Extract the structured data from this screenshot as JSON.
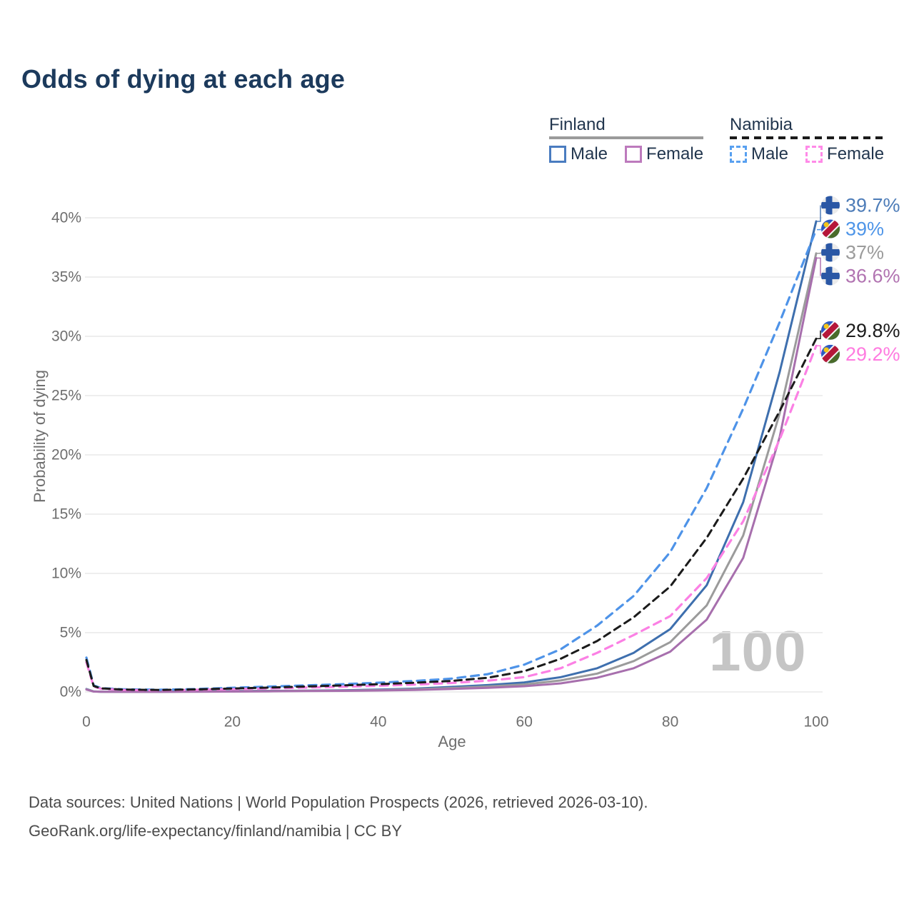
{
  "page": {
    "title": "Odds of dying at each age",
    "watermark": "100",
    "source_line1": "Data sources: United Nations | World Population Prospects (2026, retrieved 2026-03-10).",
    "source_line2": "GeoRank.org/life-expectancy/finland/namibia | CC BY"
  },
  "legend": {
    "groups": [
      {
        "title": "Finland",
        "style": "solid",
        "items": [
          {
            "label": "Male",
            "color": "#4a7cc0",
            "dash": false
          },
          {
            "label": "Female",
            "color": "#bd7abd",
            "dash": false
          }
        ]
      },
      {
        "title": "Namibia",
        "style": "dashed",
        "items": [
          {
            "label": "Male",
            "color": "#58a0f0",
            "dash": true
          },
          {
            "label": "Female",
            "color": "#ff8ae8",
            "dash": true
          }
        ]
      }
    ]
  },
  "chart_data": {
    "type": "line",
    "title": "Odds of dying at each age",
    "xlabel": "Age",
    "ylabel": "Probability of dying",
    "xlim": [
      0,
      100
    ],
    "ylim": [
      0,
      40
    ],
    "xticks": [
      0,
      20,
      40,
      60,
      80,
      100
    ],
    "yticks": [
      0,
      5,
      10,
      15,
      20,
      25,
      30,
      35,
      40
    ],
    "grid": "horizontal",
    "y_unit": "%",
    "x": [
      0,
      1,
      2,
      5,
      10,
      15,
      20,
      25,
      30,
      35,
      40,
      45,
      50,
      55,
      60,
      65,
      70,
      75,
      80,
      85,
      90,
      95,
      100
    ],
    "series": [
      {
        "id": "fi-male",
        "name": "Finland Male",
        "country": "Finland",
        "sex": "Male",
        "style": "solid",
        "color": "#3e6fae",
        "width": 3,
        "end_label": "39.7%",
        "end_label_color": "#4d7cb8",
        "flag": "finland",
        "values": [
          0.25,
          0.04,
          0.02,
          0.01,
          0.01,
          0.04,
          0.07,
          0.09,
          0.11,
          0.14,
          0.19,
          0.28,
          0.42,
          0.58,
          0.8,
          1.25,
          2.0,
          3.3,
          5.3,
          9.0,
          16.0,
          27.0,
          39.7
        ]
      },
      {
        "id": "fi-all",
        "name": "Finland",
        "country": "Finland",
        "sex": "All",
        "style": "solid",
        "color": "#9b9b9b",
        "width": 3,
        "end_label": "37%",
        "end_label_color": "#9b9b9b",
        "flag": "finland",
        "values": [
          0.22,
          0.035,
          0.018,
          0.01,
          0.01,
          0.03,
          0.05,
          0.07,
          0.09,
          0.11,
          0.15,
          0.22,
          0.33,
          0.46,
          0.63,
          0.97,
          1.55,
          2.6,
          4.2,
          7.3,
          13.2,
          23.5,
          37.0
        ]
      },
      {
        "id": "fi-female",
        "name": "Finland Female",
        "country": "Finland",
        "sex": "Female",
        "style": "solid",
        "color": "#a76fad",
        "width": 3,
        "end_label": "36.6%",
        "end_label_color": "#b173b1",
        "flag": "finland",
        "values": [
          0.2,
          0.03,
          0.015,
          0.008,
          0.008,
          0.02,
          0.03,
          0.05,
          0.07,
          0.09,
          0.12,
          0.17,
          0.25,
          0.35,
          0.48,
          0.72,
          1.2,
          2.0,
          3.4,
          6.1,
          11.3,
          21.5,
          36.6
        ]
      },
      {
        "id": "na-male",
        "name": "Namibia Male",
        "country": "Namibia",
        "sex": "Male",
        "style": "dashed",
        "color": "#4e93e8",
        "width": 3.2,
        "dasharray": "11 8",
        "end_label": "39%",
        "end_label_color": "#4e95e8",
        "flag": "namibia",
        "values": [
          2.9,
          0.55,
          0.32,
          0.22,
          0.18,
          0.25,
          0.35,
          0.45,
          0.55,
          0.65,
          0.78,
          0.93,
          1.12,
          1.5,
          2.3,
          3.6,
          5.6,
          8.1,
          11.8,
          17.2,
          23.9,
          31.2,
          39.0
        ]
      },
      {
        "id": "na-female",
        "name": "Namibia Female",
        "country": "Namibia",
        "sex": "Female",
        "style": "dashed",
        "color": "#fb80e4",
        "width": 3.2,
        "dasharray": "11 8",
        "end_label": "29.2%",
        "end_label_color": "#ff7be0",
        "flag": "namibia",
        "values": [
          2.5,
          0.45,
          0.27,
          0.17,
          0.14,
          0.18,
          0.23,
          0.29,
          0.37,
          0.44,
          0.52,
          0.62,
          0.75,
          0.95,
          1.25,
          2.0,
          3.3,
          4.8,
          6.4,
          9.6,
          14.4,
          21.3,
          29.2
        ]
      },
      {
        "id": "na-all",
        "name": "Namibia",
        "country": "Namibia",
        "sex": "All",
        "style": "dashed",
        "color": "#1b1b1b",
        "width": 3,
        "dasharray": "10 7",
        "end_label": "29.8%",
        "end_label_color": "#1b1b1b",
        "flag": "namibia",
        "values": [
          2.7,
          0.5,
          0.3,
          0.2,
          0.16,
          0.21,
          0.29,
          0.37,
          0.46,
          0.55,
          0.65,
          0.78,
          0.93,
          1.2,
          1.75,
          2.8,
          4.3,
          6.3,
          8.9,
          13.0,
          18.0,
          23.7,
          29.8
        ]
      }
    ],
    "flag_colors": {
      "finland_bg": "#ebebeb",
      "finland_cross": "#2a57a5",
      "namibia_blue": "#2b5ac4",
      "namibia_green": "#4a6b2a",
      "namibia_red": "#b5173a",
      "namibia_white": "#f4f4f4",
      "namibia_sun": "#f5c518"
    },
    "grid_color": "#e9e9e9",
    "tick_color": "#6e6e6e"
  }
}
